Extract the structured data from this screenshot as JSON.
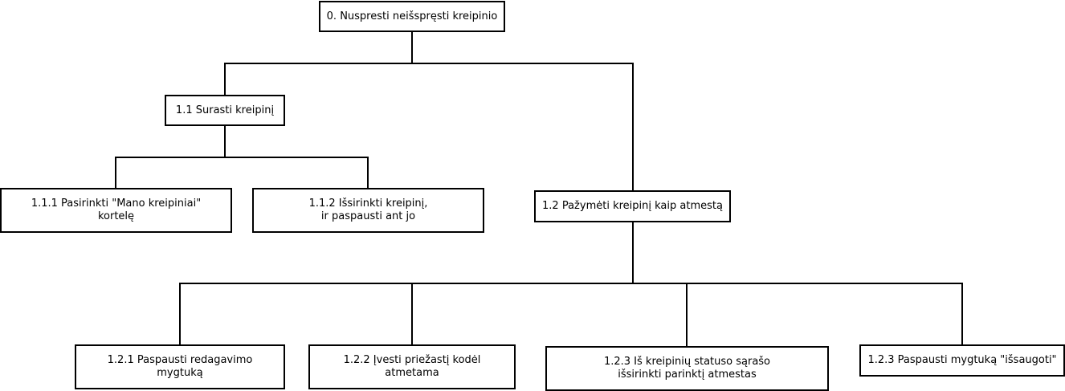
{
  "diagram": {
    "nodes": {
      "root": "0. Nuspresti neišspręsti kreipinio",
      "n11": "1.1 Surasti kreipinį",
      "n111": "1.1.1 Pasirinkti \"Mano kreipiniai\"\nkortelę",
      "n112": "1.1.2 Išsirinkti kreipinį,\nir paspausti ant jo",
      "n12": "1.2 Pažymėti kreipinį kaip atmestą",
      "n121": "1.2.1 Paspausti redagavimo\nmygtuką",
      "n122": "1.2.2 Įvesti priežastį kodėl\natmetama",
      "n123a": "1.2.3 Iš kreipinių statuso sąrašo\nišsirinkti parinktį atmestas",
      "n123b": "1.2.3 Paspausti mygtuką \"išsaugoti\""
    }
  }
}
